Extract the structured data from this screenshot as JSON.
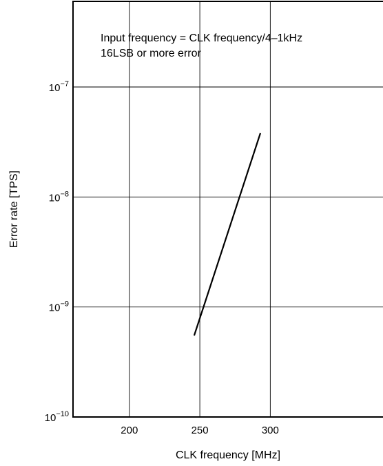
{
  "chart_data": {
    "type": "line",
    "xlabel": "CLK frequency [MHz]",
    "ylabel": "Error rate [TPS]",
    "xlim": [
      160,
      380
    ],
    "ylim": [
      1e-10,
      6e-07
    ],
    "yscale": "log",
    "grid": true,
    "x_ticks": [
      200,
      250,
      300
    ],
    "y_ticks": [
      {
        "value": 1e-10,
        "base": "10",
        "exp": "−10"
      },
      {
        "value": 1e-09,
        "base": "10",
        "exp": "−9"
      },
      {
        "value": 1e-08,
        "base": "10",
        "exp": "−8"
      },
      {
        "value": 1e-07,
        "base": "10",
        "exp": "−7"
      }
    ],
    "annotations": [
      "Input frequency = CLK frequency/4–1kHz",
      "16LSB or more error"
    ],
    "series": [
      {
        "x": [
          246,
          293
        ],
        "y": [
          5.5e-10,
          3.8e-08
        ]
      }
    ]
  }
}
